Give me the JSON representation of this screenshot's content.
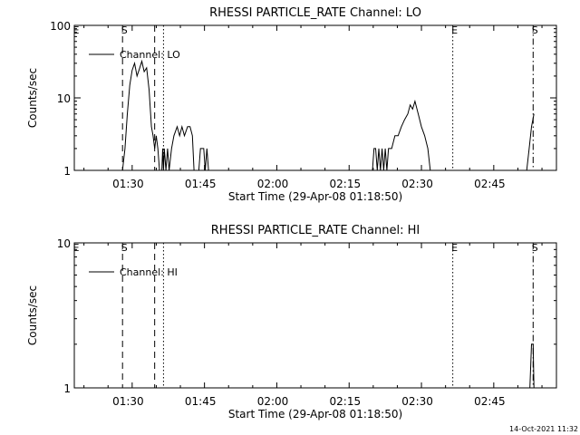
{
  "footer": {
    "timestamp": "14-Oct-2021 11:32"
  },
  "chart_data": [
    {
      "type": "line",
      "title": "RHESSI PARTICLE_RATE Channel: LO",
      "xlabel": "Start Time (29-Apr-08 01:18:50)",
      "ylabel": "Counts/sec",
      "yscale": "log",
      "xlim": [
        "01:18:50",
        "02:58:50"
      ],
      "ylim": [
        1,
        100
      ],
      "x_ticks": [
        "01:30",
        "01:45",
        "02:00",
        "02:15",
        "02:30",
        "02:45"
      ],
      "y_ticks": [
        "1",
        "10",
        "100"
      ],
      "legend": {
        "label": "Channel: LO",
        "position": "top-left"
      },
      "markers": [
        {
          "label": "E",
          "time": "01:18:50",
          "style": "dotted"
        },
        {
          "label": "S",
          "time": "01:28:50",
          "style": "dashed"
        },
        {
          "label": "",
          "time": "01:35:30",
          "style": "dashed"
        },
        {
          "label": "",
          "time": "01:37:20",
          "style": "dotted"
        },
        {
          "label": "E",
          "time": "02:37:20",
          "style": "dotted"
        },
        {
          "label": "S",
          "time": "02:54:00",
          "style": "dashdot"
        }
      ],
      "series": [
        {
          "segments": [
            [
              [
                "01:28:50",
                1
              ],
              [
                "01:29:20",
                2
              ],
              [
                "01:29:50",
                6
              ],
              [
                "01:30:20",
                15
              ],
              [
                "01:30:50",
                24
              ],
              [
                "01:31:20",
                30
              ],
              [
                "01:31:50",
                20
              ],
              [
                "01:32:20",
                25
              ],
              [
                "01:32:50",
                32
              ],
              [
                "01:33:20",
                23
              ],
              [
                "01:33:50",
                26
              ],
              [
                "01:34:20",
                13
              ],
              [
                "01:34:50",
                4
              ],
              [
                "01:35:10",
                3
              ],
              [
                "01:35:30",
                2
              ],
              [
                "01:35:50",
                3
              ],
              [
                "01:36:10",
                2
              ],
              [
                "01:36:30",
                1
              ]
            ],
            [
              [
                "01:37:00",
                1
              ],
              [
                "01:37:10",
                2
              ],
              [
                "01:37:20",
                1
              ],
              [
                "01:37:30",
                2
              ],
              [
                "01:37:50",
                1
              ],
              [
                "01:38:10",
                2
              ],
              [
                "01:38:30",
                1
              ],
              [
                "01:39:00",
                2
              ],
              [
                "01:39:30",
                3
              ],
              [
                "01:40:10",
                4
              ],
              [
                "01:40:40",
                3
              ],
              [
                "01:41:10",
                4
              ],
              [
                "01:41:40",
                3
              ],
              [
                "01:42:20",
                4
              ],
              [
                "01:42:50",
                4
              ],
              [
                "01:43:20",
                3
              ],
              [
                "01:43:40",
                1
              ]
            ],
            [
              [
                "01:44:40",
                1
              ],
              [
                "01:45:00",
                2
              ],
              [
                "01:45:40",
                2
              ],
              [
                "01:46:00",
                1
              ],
              [
                "01:46:20",
                2
              ],
              [
                "01:46:40",
                1
              ],
              [
                "01:47:00",
                1
              ]
            ],
            [
              [
                "02:20:40",
                1
              ],
              [
                "02:21:00",
                2
              ],
              [
                "02:21:20",
                2
              ],
              [
                "02:21:40",
                1
              ],
              [
                "02:22:00",
                2
              ],
              [
                "02:22:20",
                1
              ],
              [
                "02:22:40",
                2
              ],
              [
                "02:23:00",
                1
              ],
              [
                "02:23:20",
                2
              ],
              [
                "02:23:40",
                1
              ],
              [
                "02:24:00",
                2
              ],
              [
                "02:24:40",
                2
              ],
              [
                "02:25:20",
                3
              ],
              [
                "02:26:00",
                3
              ],
              [
                "02:26:40",
                4
              ],
              [
                "02:27:20",
                5
              ],
              [
                "02:28:00",
                6
              ],
              [
                "02:28:30",
                8
              ],
              [
                "02:29:00",
                7
              ],
              [
                "02:29:30",
                9
              ],
              [
                "02:30:10",
                6
              ],
              [
                "02:30:50",
                4
              ],
              [
                "02:31:30",
                3
              ],
              [
                "02:32:10",
                2
              ],
              [
                "02:32:40",
                1
              ]
            ],
            [
              [
                "02:52:40",
                1
              ],
              [
                "02:53:10",
                2
              ],
              [
                "02:53:40",
                4
              ],
              [
                "02:54:10",
                6
              ]
            ]
          ]
        }
      ]
    },
    {
      "type": "line",
      "title": "RHESSI PARTICLE_RATE Channel: HI",
      "xlabel": "Start Time (29-Apr-08 01:18:50)",
      "ylabel": "Counts/sec",
      "yscale": "log",
      "xlim": [
        "01:18:50",
        "02:58:50"
      ],
      "ylim": [
        1,
        10
      ],
      "x_ticks": [
        "01:30",
        "01:45",
        "02:00",
        "02:15",
        "02:30",
        "02:45"
      ],
      "y_ticks": [
        "1",
        "10"
      ],
      "legend": {
        "label": "Channel: HI",
        "position": "top-left"
      },
      "markers": [
        {
          "label": "E",
          "time": "01:18:50",
          "style": "dotted"
        },
        {
          "label": "S",
          "time": "01:28:50",
          "style": "dashed"
        },
        {
          "label": "",
          "time": "01:35:30",
          "style": "dashed"
        },
        {
          "label": "",
          "time": "01:37:20",
          "style": "dotted"
        },
        {
          "label": "E",
          "time": "02:37:20",
          "style": "dotted"
        },
        {
          "label": "S",
          "time": "02:54:00",
          "style": "dashdot"
        }
      ],
      "series": [
        {
          "segments": [
            [
              [
                "02:53:20",
                1
              ],
              [
                "02:53:40",
                2
              ],
              [
                "02:54:00",
                2
              ],
              [
                "02:54:10",
                1
              ]
            ]
          ]
        }
      ]
    }
  ]
}
